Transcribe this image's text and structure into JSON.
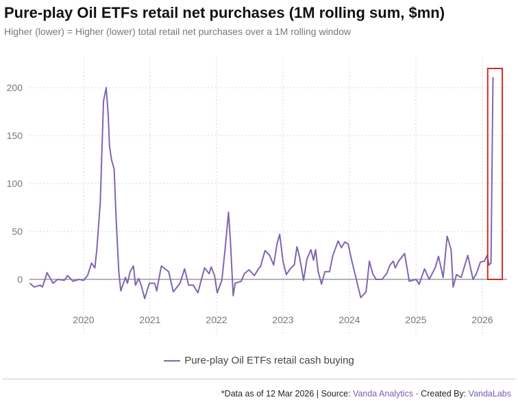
{
  "chart_data": {
    "type": "line",
    "title": "Pure-play Oil ETFs retail net purchases (1M rolling sum, $mn)",
    "subtitle": "Higher (lower) = Higher (lower) total retail net purchases over a 1M rolling window",
    "xlabel": "",
    "ylabel": "",
    "xlim": [
      2019.18,
      2026.4
    ],
    "ylim": [
      -50,
      225
    ],
    "x_ticks": [
      "2020",
      "2021",
      "2022",
      "2023",
      "2024",
      "2025",
      "2026"
    ],
    "y_ticks": [
      "0",
      "50",
      "100",
      "150",
      "200"
    ],
    "grid": "dotted",
    "legend_position": "bottom",
    "series": [
      {
        "name": "Pure-play Oil ETFs retail cash buying",
        "color": "#8064b0",
        "points": [
          [
            2019.19,
            -4
          ],
          [
            2019.26,
            -8
          ],
          [
            2019.35,
            -6
          ],
          [
            2019.38,
            -8
          ],
          [
            2019.45,
            7
          ],
          [
            2019.54,
            -4
          ],
          [
            2019.61,
            0
          ],
          [
            2019.71,
            -1
          ],
          [
            2019.76,
            4
          ],
          [
            2019.84,
            -2
          ],
          [
            2019.93,
            0
          ],
          [
            2020.0,
            -1
          ],
          [
            2020.06,
            4
          ],
          [
            2020.12,
            17
          ],
          [
            2020.17,
            12
          ],
          [
            2020.2,
            32
          ],
          [
            2020.25,
            80
          ],
          [
            2020.3,
            186
          ],
          [
            2020.34,
            200
          ],
          [
            2020.37,
            172
          ],
          [
            2020.39,
            139
          ],
          [
            2020.42,
            125
          ],
          [
            2020.46,
            115
          ],
          [
            2020.49,
            63
          ],
          [
            2020.53,
            8
          ],
          [
            2020.56,
            -12
          ],
          [
            2020.63,
            2
          ],
          [
            2020.66,
            -4
          ],
          [
            2020.7,
            8
          ],
          [
            2020.75,
            14
          ],
          [
            2020.78,
            -6
          ],
          [
            2020.83,
            1
          ],
          [
            2020.87,
            -7
          ],
          [
            2020.92,
            -20
          ],
          [
            2020.99,
            -4
          ],
          [
            2021.07,
            -4
          ],
          [
            2021.1,
            -12
          ],
          [
            2021.17,
            14
          ],
          [
            2021.28,
            8
          ],
          [
            2021.35,
            -13
          ],
          [
            2021.45,
            -4
          ],
          [
            2021.52,
            11
          ],
          [
            2021.58,
            -6
          ],
          [
            2021.65,
            -6
          ],
          [
            2021.72,
            -14
          ],
          [
            2021.82,
            12
          ],
          [
            2021.89,
            6
          ],
          [
            2021.92,
            13
          ],
          [
            2021.97,
            4
          ],
          [
            2022.01,
            -14
          ],
          [
            2022.08,
            -1
          ],
          [
            2022.13,
            32
          ],
          [
            2022.18,
            70
          ],
          [
            2022.21,
            39
          ],
          [
            2022.25,
            -17
          ],
          [
            2022.28,
            -4
          ],
          [
            2022.37,
            -2
          ],
          [
            2022.42,
            6
          ],
          [
            2022.49,
            10
          ],
          [
            2022.57,
            4
          ],
          [
            2022.64,
            12
          ],
          [
            2022.66,
            13
          ],
          [
            2022.73,
            30
          ],
          [
            2022.8,
            25
          ],
          [
            2022.86,
            15
          ],
          [
            2022.91,
            37
          ],
          [
            2022.95,
            47
          ],
          [
            2023.0,
            19
          ],
          [
            2023.05,
            5
          ],
          [
            2023.12,
            12
          ],
          [
            2023.17,
            15
          ],
          [
            2023.21,
            34
          ],
          [
            2023.25,
            23
          ],
          [
            2023.31,
            -1
          ],
          [
            2023.36,
            21
          ],
          [
            2023.42,
            31
          ],
          [
            2023.46,
            20
          ],
          [
            2023.49,
            31
          ],
          [
            2023.53,
            8
          ],
          [
            2023.58,
            -5
          ],
          [
            2023.63,
            8
          ],
          [
            2023.7,
            8
          ],
          [
            2023.75,
            25
          ],
          [
            2023.83,
            40
          ],
          [
            2023.88,
            33
          ],
          [
            2023.93,
            39
          ],
          [
            2023.98,
            37
          ],
          [
            2024.03,
            21
          ],
          [
            2024.11,
            -2
          ],
          [
            2024.17,
            -19
          ],
          [
            2024.25,
            -13
          ],
          [
            2024.3,
            19
          ],
          [
            2024.35,
            6
          ],
          [
            2024.4,
            0
          ],
          [
            2024.49,
            0
          ],
          [
            2024.56,
            6
          ],
          [
            2024.61,
            15
          ],
          [
            2024.66,
            19
          ],
          [
            2024.69,
            12
          ],
          [
            2024.74,
            19
          ],
          [
            2024.83,
            27
          ],
          [
            2024.9,
            -2
          ],
          [
            2025.0,
            0
          ],
          [
            2025.05,
            -5
          ],
          [
            2025.13,
            11
          ],
          [
            2025.2,
            0
          ],
          [
            2025.29,
            12
          ],
          [
            2025.34,
            24
          ],
          [
            2025.41,
            2
          ],
          [
            2025.47,
            45
          ],
          [
            2025.53,
            31
          ],
          [
            2025.56,
            -8
          ],
          [
            2025.61,
            5
          ],
          [
            2025.68,
            2
          ],
          [
            2025.78,
            25
          ],
          [
            2025.86,
            0
          ],
          [
            2025.91,
            6
          ],
          [
            2025.97,
            18
          ],
          [
            2026.03,
            19
          ],
          [
            2026.07,
            25
          ],
          [
            2026.1,
            15
          ],
          [
            2026.13,
            17
          ],
          [
            2026.16,
            211
          ]
        ]
      }
    ],
    "annotation": {
      "type": "highlight-box",
      "color": "#d02b2b",
      "x_range": [
        2026.08,
        2026.3
      ],
      "y_range": [
        0,
        220
      ]
    }
  },
  "footer": {
    "prefix": "*Data as of 12 Mar 2026 | Source: ",
    "source": "Vanda Analytics",
    "middle": " · Created By: ",
    "creator": "VandaLabs"
  }
}
